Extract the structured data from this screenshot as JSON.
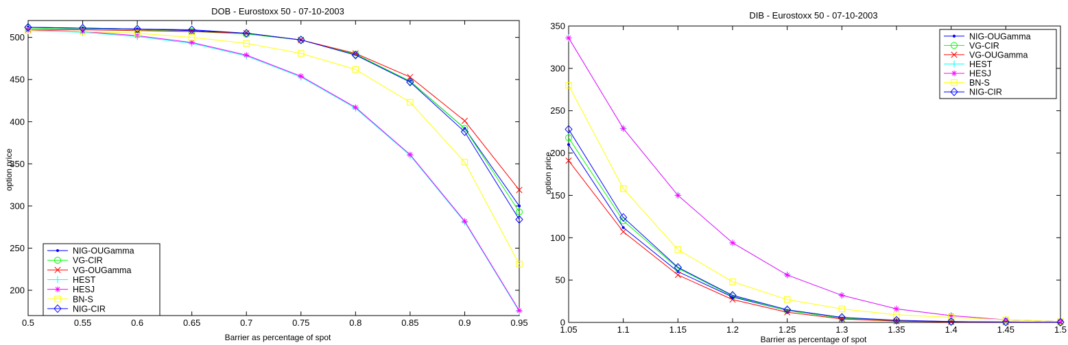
{
  "chart_data": [
    {
      "type": "line",
      "title": "DOB - Eurostoxx 50 - 07-10-2003",
      "xlabel": "Barrier as percentage of spot",
      "ylabel": "option price",
      "xlim": [
        0.5,
        0.95
      ],
      "ylim": [
        170,
        520
      ],
      "xticks": [
        0.5,
        0.55,
        0.6,
        0.65,
        0.7,
        0.75,
        0.8,
        0.85,
        0.9,
        0.95
      ],
      "xtick_labels": [
        "0.5",
        "0.55",
        "0.6",
        "0.65",
        "0.7",
        "0.75",
        "0.8",
        "0.85",
        "0.9",
        "0.95"
      ],
      "yticks": [
        200,
        250,
        300,
        350,
        400,
        450,
        500
      ],
      "ytick_labels": [
        "200",
        "250",
        "300",
        "350",
        "400",
        "450",
        "500"
      ],
      "legend_position": "bottom-left",
      "x": [
        0.5,
        0.55,
        0.6,
        0.65,
        0.7,
        0.75,
        0.8,
        0.85,
        0.9,
        0.95
      ],
      "series": [
        {
          "name": "NIG-OUGamma",
          "color": "#0000ff",
          "marker": "dot",
          "values": [
            512,
            511,
            510,
            508,
            505,
            497,
            480,
            448,
            392,
            300
          ]
        },
        {
          "name": "VG-CIR",
          "color": "#00ff00",
          "marker": "circle",
          "values": [
            511,
            510,
            509,
            507,
            504,
            497,
            480,
            448,
            392,
            293
          ]
        },
        {
          "name": "VG-OUGamma",
          "color": "#ff0000",
          "marker": "x",
          "values": [
            509,
            509,
            508,
            507,
            505,
            497,
            481,
            453,
            401,
            319
          ]
        },
        {
          "name": "HEST",
          "color": "#00ffff",
          "marker": "plus",
          "values": [
            508,
            506,
            501,
            493,
            478,
            453,
            416,
            360,
            281,
            175
          ]
        },
        {
          "name": "HESJ",
          "color": "#ff00ff",
          "marker": "star",
          "values": [
            509,
            507,
            502,
            494,
            479,
            454,
            417,
            361,
            282,
            176
          ]
        },
        {
          "name": "BN-S",
          "color": "#ffff00",
          "marker": "square",
          "values": [
            508,
            507,
            505,
            500,
            493,
            481,
            462,
            423,
            352,
            231
          ]
        },
        {
          "name": "NIG-CIR",
          "color": "#0000ff",
          "marker": "diamond",
          "values": [
            512,
            511,
            510,
            509,
            505,
            497,
            479,
            447,
            388,
            284
          ]
        }
      ]
    },
    {
      "type": "line",
      "title": "DIB - Eurostoxx 50 - 07-10-2003",
      "xlabel": "Barrier as percentage of spot",
      "ylabel": "option price",
      "xlim": [
        1.05,
        1.5
      ],
      "ylim": [
        0,
        350
      ],
      "xticks": [
        1.05,
        1.1,
        1.15,
        1.2,
        1.25,
        1.3,
        1.35,
        1.4,
        1.45,
        1.5
      ],
      "xtick_labels": [
        "1.05",
        "1.1",
        "1.15",
        "1.2",
        "1.25",
        "1.3",
        "1.35",
        "1.4",
        "1.45",
        "1.5"
      ],
      "yticks": [
        0,
        50,
        100,
        150,
        200,
        250,
        300,
        350
      ],
      "ytick_labels": [
        "0",
        "50",
        "100",
        "150",
        "200",
        "250",
        "300",
        "350"
      ],
      "legend_position": "top-right",
      "x": [
        1.05,
        1.1,
        1.15,
        1.2,
        1.25,
        1.3,
        1.35,
        1.4,
        1.45,
        1.5
      ],
      "series": [
        {
          "name": "NIG-OUGamma",
          "color": "#0000ff",
          "marker": "dot",
          "values": [
            210,
            112,
            60,
            30,
            14,
            5,
            2,
            1,
            0.5,
            0.3
          ]
        },
        {
          "name": "VG-CIR",
          "color": "#00ff00",
          "marker": "circle",
          "values": [
            218,
            120,
            64,
            31,
            14,
            5,
            2,
            0.8,
            0.4,
            0.2
          ]
        },
        {
          "name": "VG-OUGamma",
          "color": "#ff0000",
          "marker": "x",
          "values": [
            191,
            107,
            56,
            27,
            12,
            4,
            1.5,
            0.6,
            0.3,
            0.1
          ]
        },
        {
          "name": "HEST",
          "color": "#00ffff",
          "marker": "plus",
          "values": [
            336,
            229,
            150,
            94,
            56,
            32,
            16,
            8,
            3,
            1
          ]
        },
        {
          "name": "HESJ",
          "color": "#ff00ff",
          "marker": "star",
          "values": [
            336,
            229,
            150,
            94,
            56,
            32,
            16,
            8,
            3,
            1
          ]
        },
        {
          "name": "BN-S",
          "color": "#ffff00",
          "marker": "square",
          "values": [
            280,
            158,
            86,
            48,
            27,
            16,
            9,
            6,
            3,
            1
          ]
        },
        {
          "name": "NIG-CIR",
          "color": "#0000ff",
          "marker": "diamond",
          "values": [
            228,
            124,
            65,
            32,
            15,
            6,
            2.5,
            1,
            0.5,
            0.2
          ]
        }
      ]
    }
  ]
}
